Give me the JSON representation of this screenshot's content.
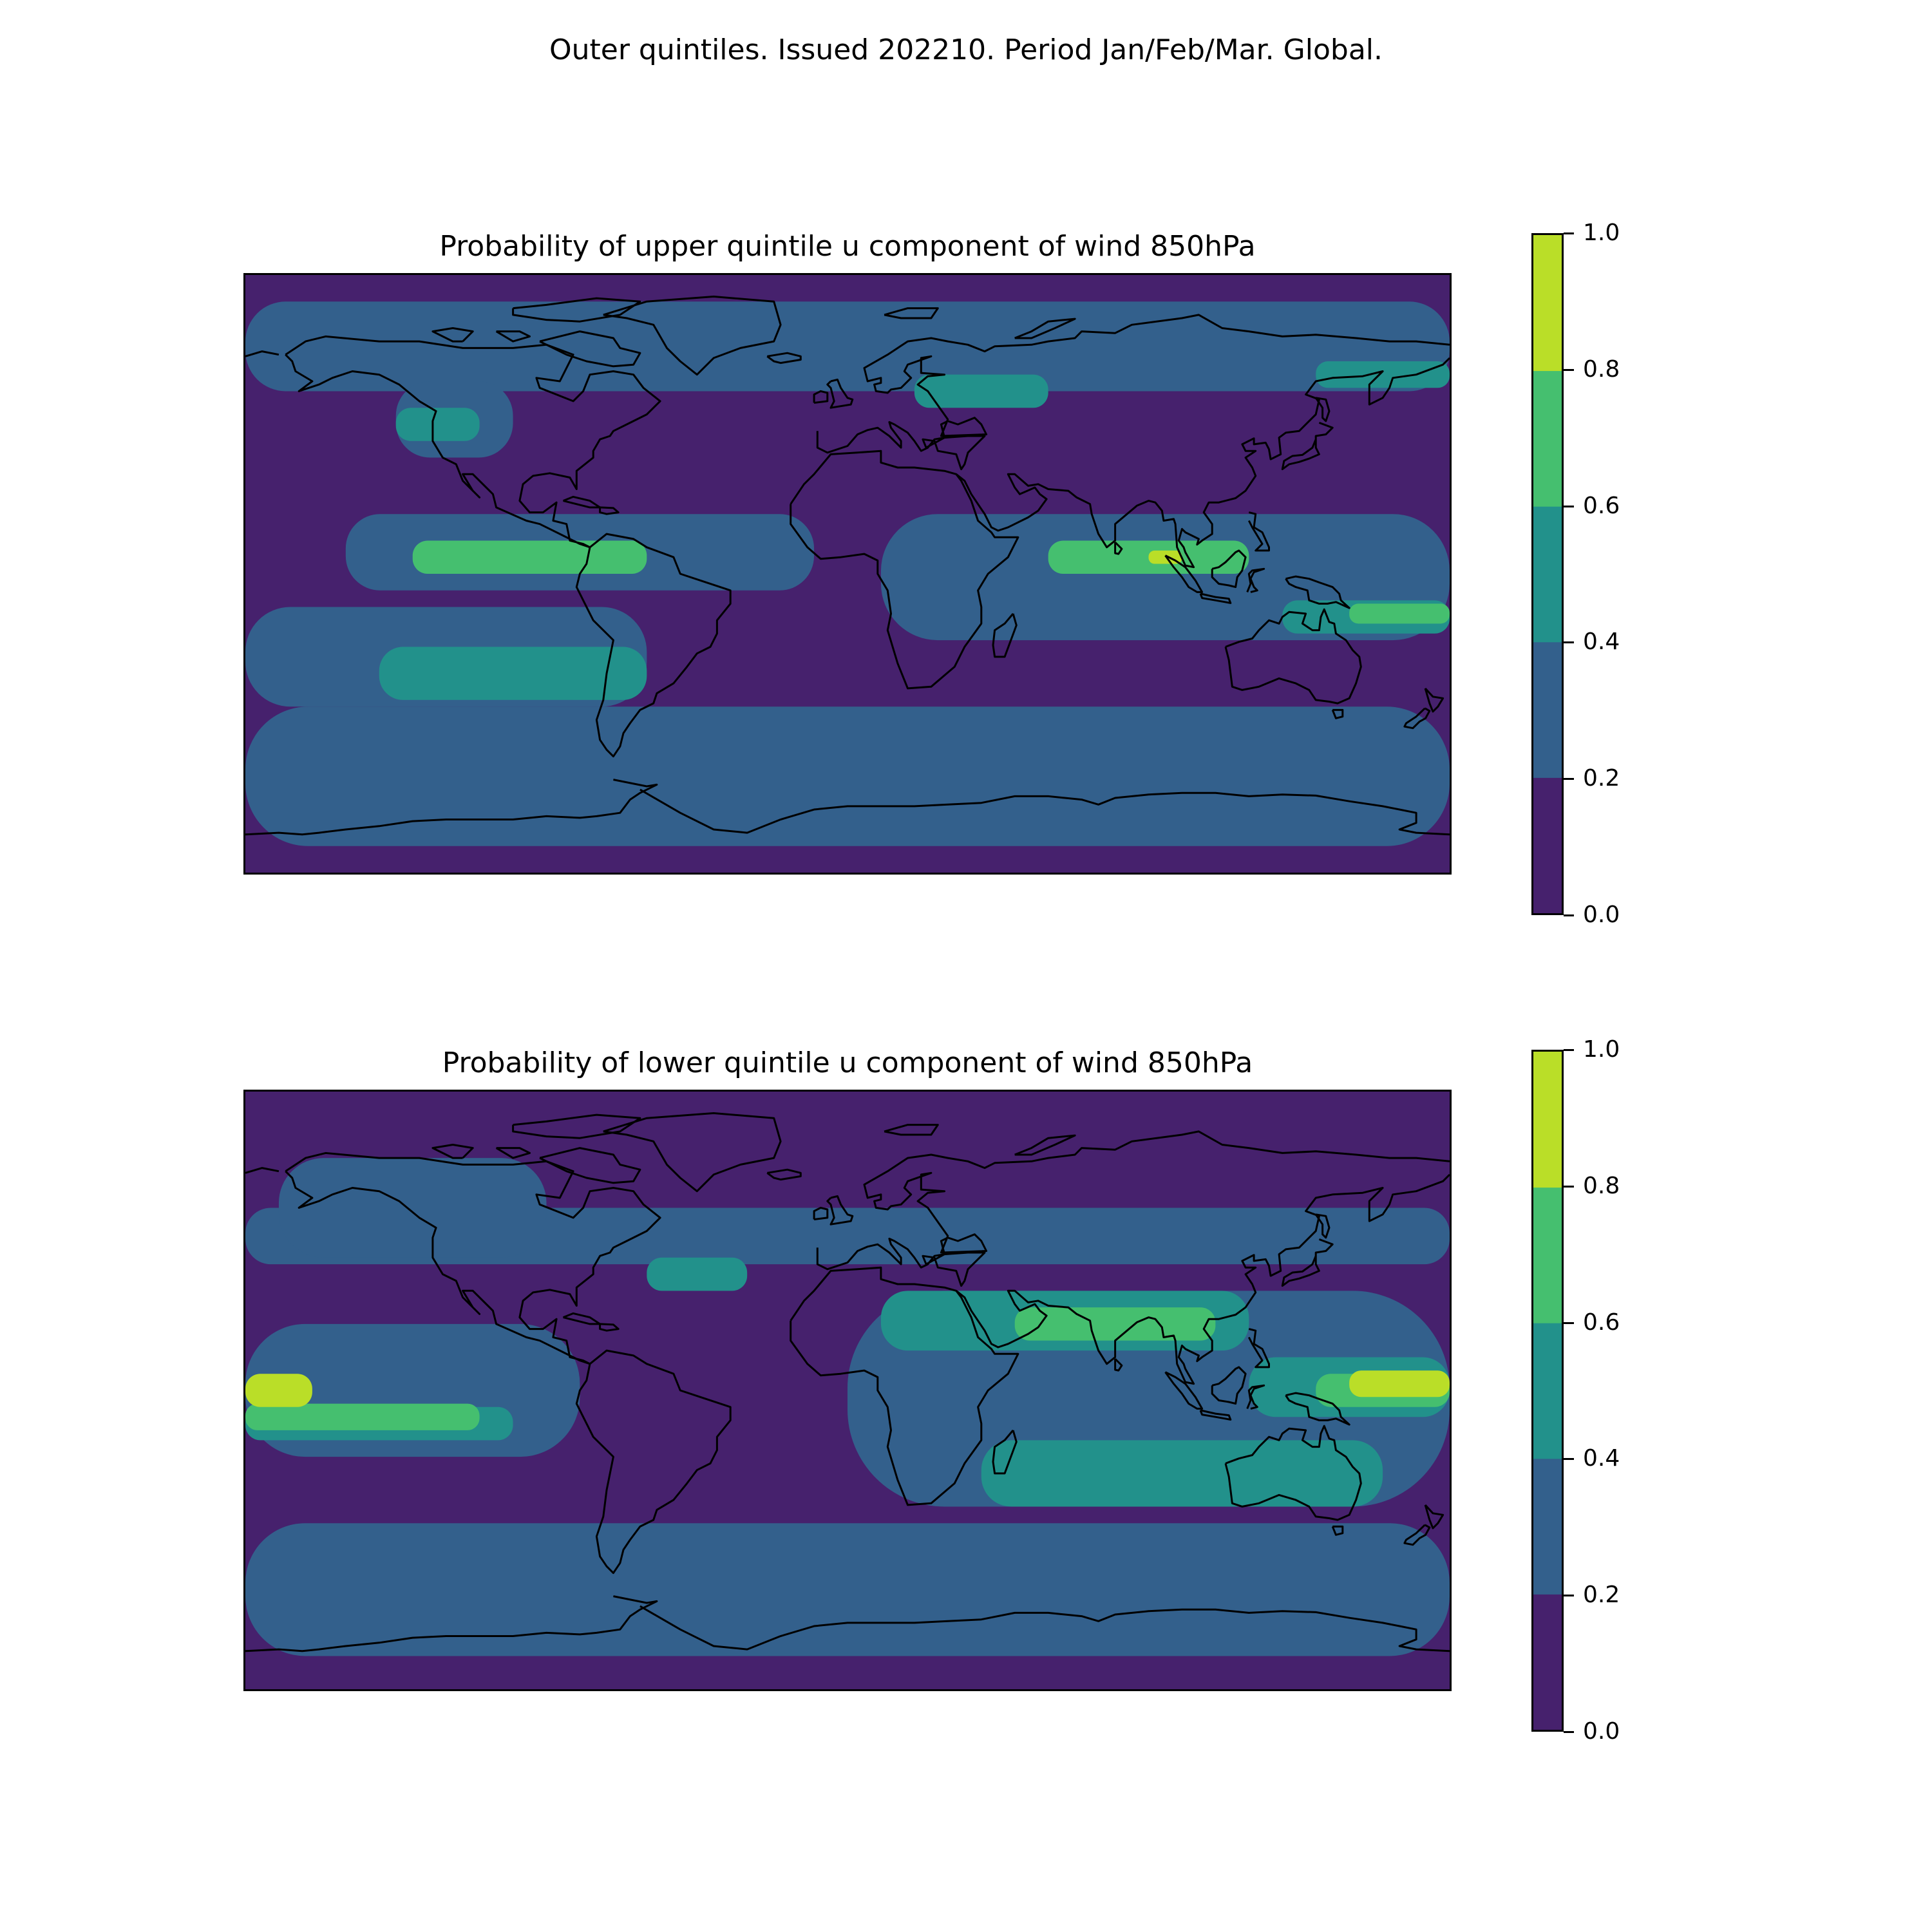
{
  "figure": {
    "suptitle": "Outer quintiles. Issued 202210. Period Jan/Feb/Mar. Global."
  },
  "colorbar": {
    "levels": [
      0.0,
      0.2,
      0.4,
      0.6,
      0.8,
      1.0
    ],
    "tick_labels": [
      "0.0",
      "0.2",
      "0.4",
      "0.6",
      "0.8",
      "1.0"
    ],
    "colors": [
      "#46216d",
      "#33608c",
      "#22918b",
      "#45bf6f",
      "#bade28"
    ]
  },
  "maps": [
    {
      "title": "Probability of upper quintile u component of wind 850hPa",
      "regions": [
        {
          "category": 1,
          "lon": [
            -180,
            180
          ],
          "lat": [
            55,
            82
          ]
        },
        {
          "category": 1,
          "lon": [
            -180,
            180
          ],
          "lat": [
            -82,
            -40
          ]
        },
        {
          "category": 1,
          "lon": [
            -150,
            -10
          ],
          "lat": [
            -5,
            18
          ]
        },
        {
          "category": 1,
          "lon": [
            10,
            180
          ],
          "lat": [
            -20,
            18
          ]
        },
        {
          "category": 1,
          "lon": [
            -180,
            -60
          ],
          "lat": [
            -40,
            -10
          ]
        },
        {
          "category": 1,
          "lon": [
            -135,
            -100
          ],
          "lat": [
            35,
            58
          ]
        },
        {
          "category": 2,
          "lon": [
            -135,
            -110
          ],
          "lat": [
            40,
            50
          ]
        },
        {
          "category": 2,
          "lon": [
            -140,
            -60
          ],
          "lat": [
            -38,
            -22
          ]
        },
        {
          "category": 2,
          "lon": [
            20,
            60
          ],
          "lat": [
            50,
            60
          ]
        },
        {
          "category": 2,
          "lon": [
            130,
            180
          ],
          "lat": [
            -18,
            -8
          ]
        },
        {
          "category": 2,
          "lon": [
            140,
            180
          ],
          "lat": [
            56,
            64
          ]
        },
        {
          "category": 3,
          "lon": [
            -130,
            -60
          ],
          "lat": [
            0,
            10
          ]
        },
        {
          "category": 3,
          "lon": [
            60,
            120
          ],
          "lat": [
            0,
            10
          ]
        },
        {
          "category": 3,
          "lon": [
            150,
            180
          ],
          "lat": [
            -15,
            -9
          ]
        },
        {
          "category": 4,
          "lon": [
            90,
            100
          ],
          "lat": [
            3,
            7
          ]
        }
      ],
      "coastline_color": "black"
    },
    {
      "title": "Probability of lower quintile u component of wind 850hPa",
      "regions": [
        {
          "category": 1,
          "lon": [
            -180,
            180
          ],
          "lat": [
            38,
            55
          ]
        },
        {
          "category": 1,
          "lon": [
            -180,
            180
          ],
          "lat": [
            -80,
            -40
          ]
        },
        {
          "category": 1,
          "lon": [
            0,
            180
          ],
          "lat": [
            -35,
            30
          ]
        },
        {
          "category": 1,
          "lon": [
            -180,
            -80
          ],
          "lat": [
            -20,
            20
          ]
        },
        {
          "category": 1,
          "lon": [
            -170,
            -90
          ],
          "lat": [
            40,
            70
          ]
        },
        {
          "category": 2,
          "lon": [
            -60,
            -30
          ],
          "lat": [
            30,
            40
          ]
        },
        {
          "category": 2,
          "lon": [
            10,
            120
          ],
          "lat": [
            12,
            30
          ]
        },
        {
          "category": 2,
          "lon": [
            120,
            180
          ],
          "lat": [
            -8,
            10
          ]
        },
        {
          "category": 2,
          "lon": [
            -180,
            -100
          ],
          "lat": [
            -15,
            -5
          ]
        },
        {
          "category": 2,
          "lon": [
            40,
            160
          ],
          "lat": [
            -35,
            -15
          ]
        },
        {
          "category": 3,
          "lon": [
            50,
            110
          ],
          "lat": [
            15,
            25
          ]
        },
        {
          "category": 3,
          "lon": [
            140,
            180
          ],
          "lat": [
            -5,
            5
          ]
        },
        {
          "category": 3,
          "lon": [
            -180,
            -110
          ],
          "lat": [
            -12,
            -4
          ]
        },
        {
          "category": 4,
          "lon": [
            -180,
            -160
          ],
          "lat": [
            -5,
            5
          ]
        },
        {
          "category": 4,
          "lon": [
            150,
            180
          ],
          "lat": [
            -2,
            6
          ]
        }
      ],
      "coastline_color": "black"
    }
  ]
}
